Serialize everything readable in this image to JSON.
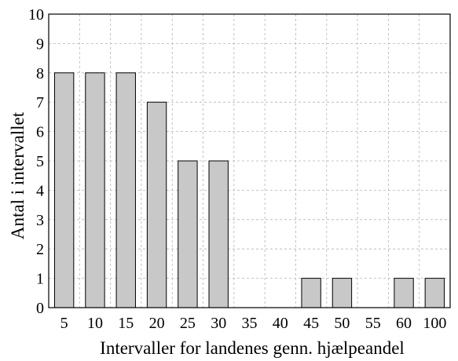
{
  "chart_data": {
    "type": "bar",
    "title": "",
    "xlabel": "Intervaller for landenes genn. hjælpeandel",
    "ylabel": "Antal i intervallet",
    "categories": [
      "5",
      "10",
      "15",
      "20",
      "25",
      "30",
      "35",
      "40",
      "45",
      "50",
      "55",
      "60",
      "100"
    ],
    "values": [
      8,
      8,
      8,
      7,
      5,
      5,
      0,
      0,
      1,
      1,
      0,
      1,
      1
    ],
    "ylim": [
      0,
      10
    ],
    "yticks": [
      "0",
      "1",
      "2",
      "3",
      "4",
      "5",
      "6",
      "7",
      "8",
      "9",
      "10"
    ],
    "grid": true,
    "legend": "none",
    "colors": {
      "bar_fill": "#c8c8c8",
      "bar_stroke": "#000000",
      "grid": "#b4b4b4",
      "axis": "#000000"
    }
  }
}
